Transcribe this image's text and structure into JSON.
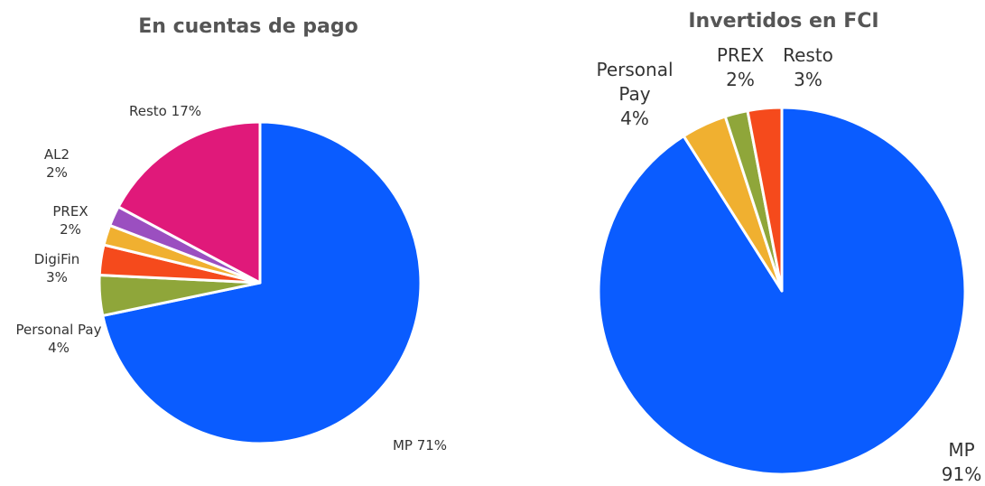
{
  "chart_data": [
    {
      "type": "pie",
      "title": "En cuentas de pago",
      "categories": [
        "MP",
        "Personal Pay",
        "DigiFin",
        "PREX",
        "AL2",
        "Resto"
      ],
      "values": [
        71,
        4,
        3,
        2,
        2,
        17
      ],
      "value_labels": [
        "71%",
        "4%",
        "3%",
        "2%",
        "2%",
        "17%"
      ],
      "colors": [
        "#0a5cff",
        "#8fa63a",
        "#f54a1c",
        "#f0b030",
        "#9b4fc0",
        "#e0197a"
      ]
    },
    {
      "type": "pie",
      "title": "Invertidos en FCI",
      "categories": [
        "MP",
        "Personal Pay",
        "PREX",
        "Resto"
      ],
      "values": [
        91,
        4,
        2,
        3
      ],
      "value_labels": [
        "91%",
        "4%",
        "2%",
        "3%"
      ],
      "colors": [
        "#0a5cff",
        "#f0b030",
        "#8fa63a",
        "#f54a1c"
      ]
    }
  ]
}
